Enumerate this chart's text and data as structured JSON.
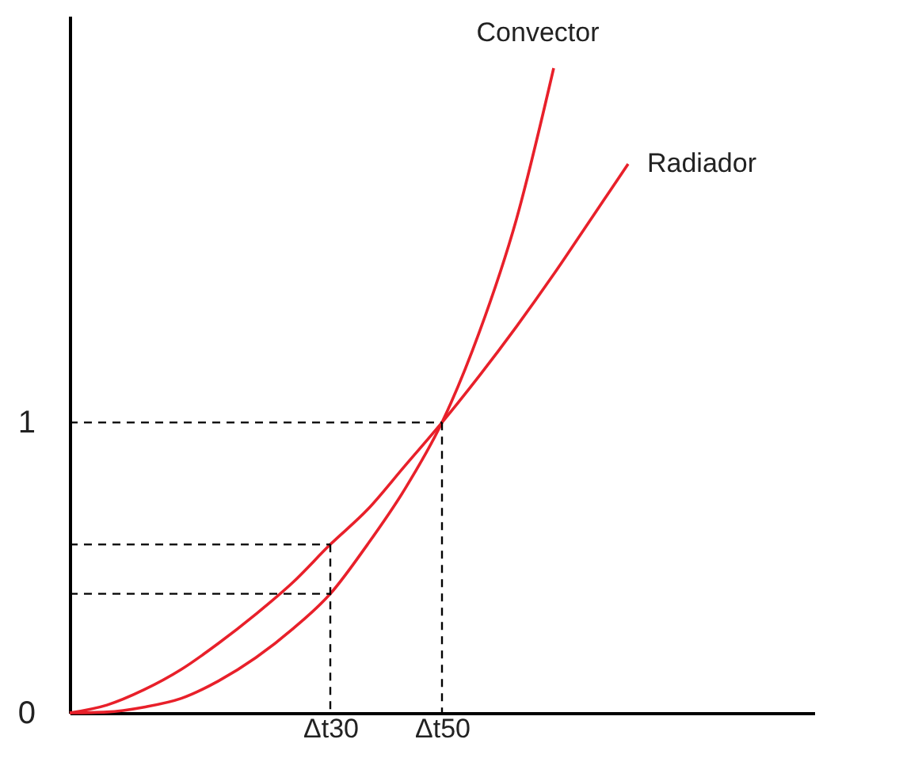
{
  "chart_data": {
    "type": "line",
    "ylim": [
      0,
      2.4
    ],
    "categories": [
      null,
      null,
      null,
      null,
      null,
      null,
      null,
      "Δt30",
      null,
      null,
      "Δt50",
      null,
      null,
      null,
      null,
      null,
      null,
      null,
      null,
      null,
      null
    ],
    "yticks": [
      {
        "value": 0,
        "label": "0"
      },
      {
        "value": 1,
        "label": "1"
      }
    ],
    "grid": false,
    "legend": false,
    "marker": "none",
    "series": [
      {
        "name": "Convector",
        "color": "#e8202a",
        "line_style": "solid",
        "values": [
          0,
          0.003,
          0.02,
          0.05,
          0.11,
          0.19,
          0.29,
          0.41,
          0.58,
          0.77,
          1.0,
          1.31,
          1.7,
          2.22,
          null,
          null,
          null,
          null,
          null,
          null,
          null
        ]
      },
      {
        "name": "Radiador",
        "color": "#e8202a",
        "line_style": "solid",
        "values": [
          0,
          0.027,
          0.08,
          0.15,
          0.24,
          0.34,
          0.45,
          0.58,
          0.7,
          0.85,
          1.0,
          1.16,
          1.33,
          1.51,
          1.7,
          1.89,
          null,
          null,
          null,
          null,
          null
        ]
      },
      {
        "color": "#000000",
        "line_style": "dashed",
        "values": [
          1,
          1,
          1,
          1,
          1,
          1,
          1,
          1,
          1,
          1,
          1,
          null,
          null,
          null,
          null,
          null,
          null,
          null,
          null,
          null,
          null
        ]
      },
      {
        "color": "#000000",
        "line_style": "dashed",
        "values": [
          0.58,
          0.58,
          0.58,
          0.58,
          0.58,
          0.58,
          0.58,
          0.58,
          null,
          null,
          null,
          null,
          null,
          null,
          null,
          null,
          null,
          null,
          null,
          null,
          null
        ]
      },
      {
        "color": "#000000",
        "line_style": "dashed",
        "values": [
          0.41,
          0.41,
          0.41,
          0.41,
          0.41,
          0.41,
          0.41,
          0.41,
          null,
          null,
          null,
          null,
          null,
          null,
          null,
          null,
          null,
          null,
          null,
          null,
          null
        ]
      },
      {
        "color": "#000000",
        "line_style": "dashed",
        "x": [
          "Δt50",
          "Δt50"
        ],
        "values": [
          1,
          0
        ]
      },
      {
        "color": "#000000",
        "line_style": "dashed",
        "x": [
          "Δt30",
          "Δt30"
        ],
        "values": [
          0.58,
          0
        ]
      }
    ]
  }
}
